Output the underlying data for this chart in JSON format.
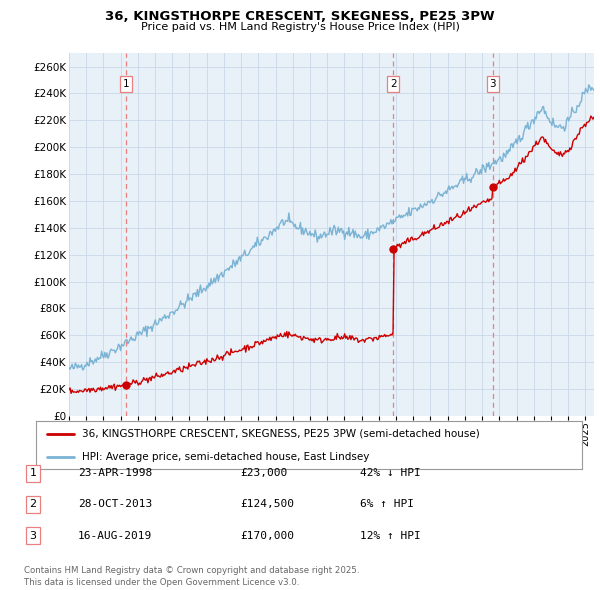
{
  "title_line1": "36, KINGSTHORPE CRESCENT, SKEGNESS, PE25 3PW",
  "title_line2": "Price paid vs. HM Land Registry's House Price Index (HPI)",
  "ylim": [
    0,
    270000
  ],
  "yticks": [
    0,
    20000,
    40000,
    60000,
    80000,
    100000,
    120000,
    140000,
    160000,
    180000,
    200000,
    220000,
    240000,
    260000
  ],
  "sale_dates_num": [
    1998.31,
    2013.83,
    2019.62
  ],
  "sale_prices": [
    23000,
    124500,
    170000
  ],
  "sale_labels": [
    "1",
    "2",
    "3"
  ],
  "legend_entry1": "36, KINGSTHORPE CRESCENT, SKEGNESS, PE25 3PW (semi-detached house)",
  "legend_entry2": "HPI: Average price, semi-detached house, East Lindsey",
  "table_rows": [
    [
      "1",
      "23-APR-1998",
      "£23,000",
      "42% ↓ HPI"
    ],
    [
      "2",
      "28-OCT-2013",
      "£124,500",
      "6% ↑ HPI"
    ],
    [
      "3",
      "16-AUG-2019",
      "£170,000",
      "12% ↑ HPI"
    ]
  ],
  "footer": "Contains HM Land Registry data © Crown copyright and database right 2025.\nThis data is licensed under the Open Government Licence v3.0.",
  "hpi_color": "#7ab3d4",
  "sale_color": "#cc0000",
  "vline_color": "#e88080",
  "grid_color": "#c8d8e8",
  "chart_bg": "#e8f0f8",
  "background_color": "#ffffff"
}
